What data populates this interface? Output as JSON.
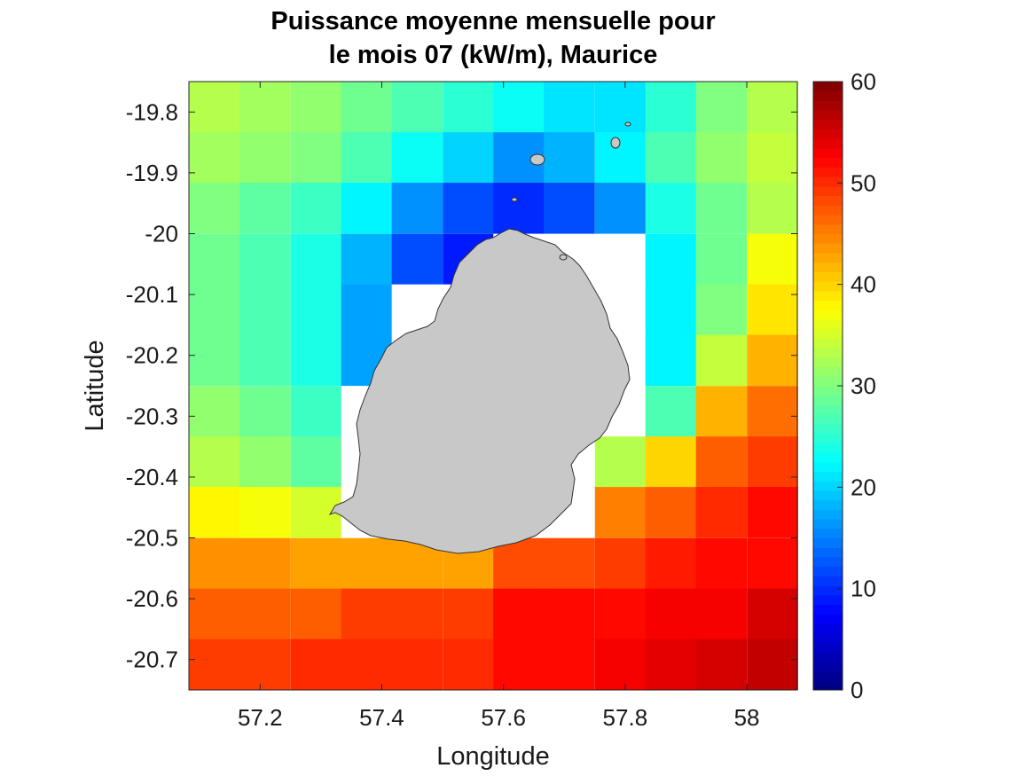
{
  "chart_data": {
    "type": "heatmap",
    "title_lines": [
      "Puissance moyenne mensuelle pour",
      "le mois 07 (kW/m), Maurice"
    ],
    "xlabel": "Longitude",
    "ylabel": "Latitude",
    "xlim": [
      57.083,
      58.083
    ],
    "ylim": [
      -20.75,
      -19.75
    ],
    "x_ticks": [
      57.2,
      57.4,
      57.6,
      57.8,
      58.0
    ],
    "x_tick_labels": [
      "57.2",
      "57.4",
      "57.6",
      "57.8",
      "58"
    ],
    "y_ticks": [
      -19.8,
      -19.9,
      -20.0,
      -20.1,
      -20.2,
      -20.3,
      -20.4,
      -20.5,
      -20.6,
      -20.7
    ],
    "y_tick_labels": [
      "-19.8",
      "-19.9",
      "-20",
      "-20.1",
      "-20.2",
      "-20.3",
      "-20.4",
      "-20.5",
      "-20.6",
      "-20.7"
    ],
    "colormap": "jet",
    "clim": [
      0,
      60
    ],
    "colorbar_ticks": [
      0,
      10,
      20,
      30,
      40,
      50,
      60
    ],
    "colorbar_tick_labels": [
      "0",
      "10",
      "20",
      "30",
      "40",
      "50",
      "60"
    ],
    "cell_lon_centers": [
      57.125,
      57.208,
      57.292,
      57.375,
      57.458,
      57.542,
      57.625,
      57.708,
      57.792,
      57.875,
      57.958,
      58.042
    ],
    "cell_lat_centers": [
      -19.792,
      -19.875,
      -19.958,
      -20.042,
      -20.125,
      -20.208,
      -20.292,
      -20.375,
      -20.458,
      -20.542,
      -20.625,
      -20.708
    ],
    "values": [
      [
        33,
        32,
        31,
        29,
        27,
        25,
        23,
        21,
        21,
        25,
        30,
        33
      ],
      [
        32,
        31,
        30,
        27,
        23,
        20,
        16,
        18,
        22,
        27,
        31,
        34
      ],
      [
        30,
        28,
        26,
        22,
        16,
        12,
        10,
        12,
        16,
        24,
        29,
        33
      ],
      [
        29,
        27,
        24,
        18,
        12,
        9,
        null,
        null,
        null,
        22,
        29,
        37
      ],
      [
        29,
        27,
        24,
        17,
        null,
        null,
        null,
        null,
        null,
        22,
        30,
        39
      ],
      [
        29,
        27,
        24,
        17,
        null,
        null,
        null,
        null,
        null,
        22,
        34,
        42
      ],
      [
        31,
        29,
        26,
        null,
        null,
        null,
        null,
        null,
        null,
        27,
        42,
        46
      ],
      [
        33,
        31,
        28,
        null,
        null,
        null,
        null,
        null,
        33,
        40,
        47,
        49
      ],
      [
        38,
        37,
        35,
        null,
        null,
        null,
        null,
        null,
        45,
        47,
        50,
        52
      ],
      [
        44,
        44,
        43,
        43,
        43,
        43,
        48,
        48,
        49,
        51,
        52,
        52
      ],
      [
        47,
        47,
        47,
        49,
        49,
        49,
        52,
        52,
        52,
        53,
        53,
        55
      ],
      [
        49,
        49,
        50,
        50,
        50,
        50,
        52,
        52,
        53,
        54,
        55,
        56
      ]
    ],
    "island": "Mauritius landmass in grey, with small northern islets"
  }
}
